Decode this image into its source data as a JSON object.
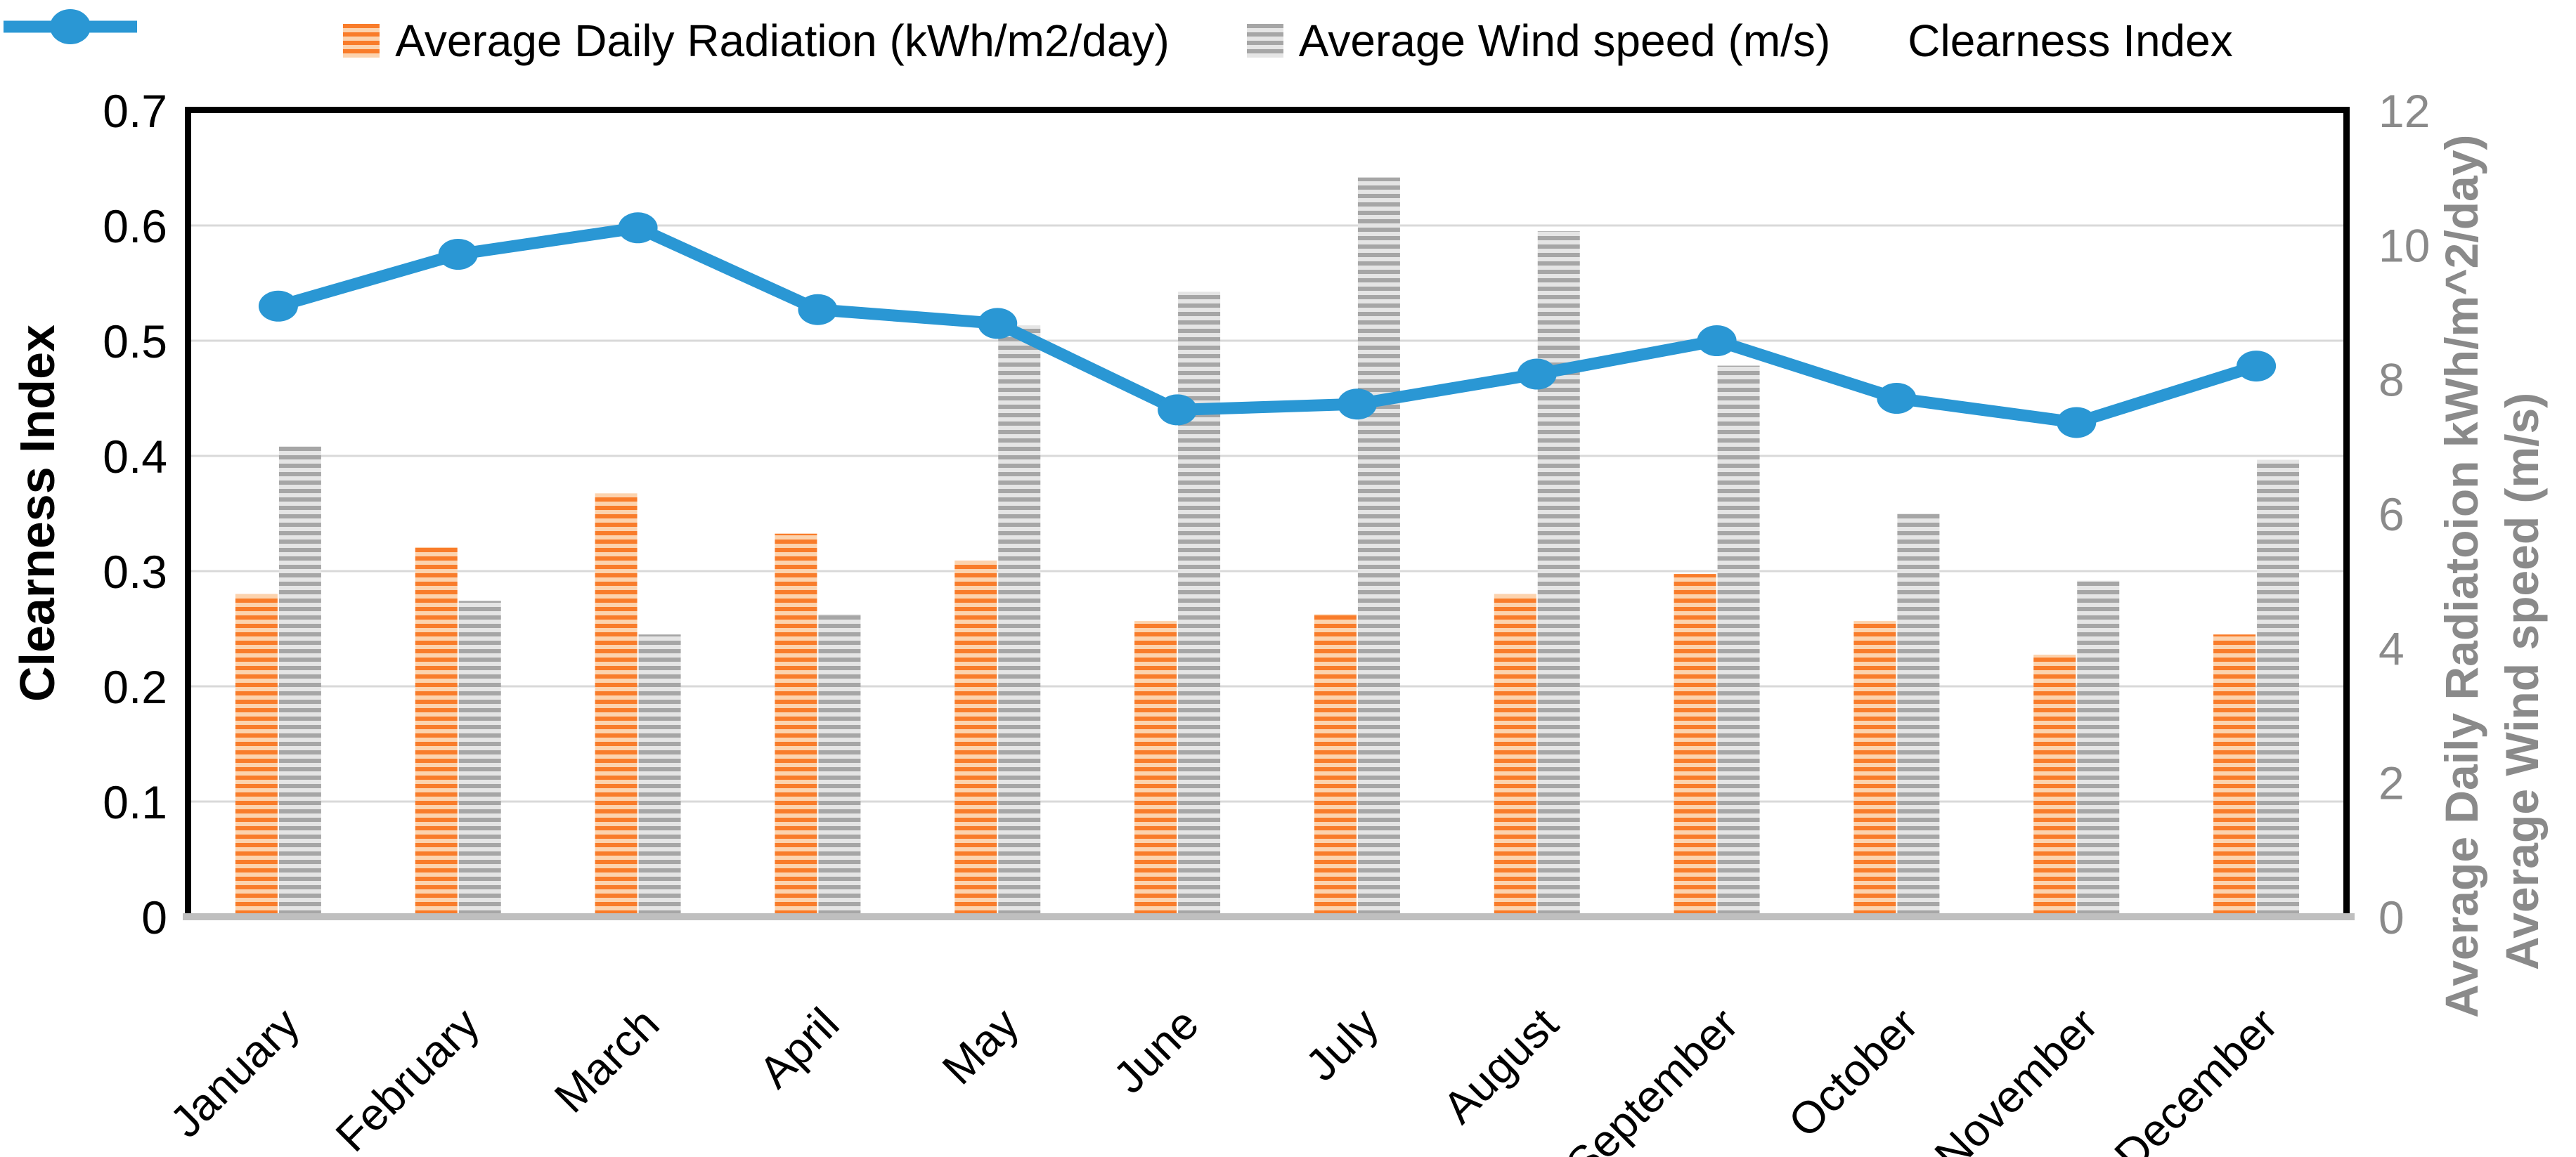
{
  "legend": {
    "radiation_label": "Average Daily Radiation (kWh/m2/day)",
    "wind_label": "Average Wind speed (m/s)",
    "clearness_label": "Clearness Index"
  },
  "axes": {
    "left_title": "Clearness Index",
    "right_title_line1": "Average Daily Radiatoion kWh/m^2/day)",
    "right_title_line2": "Average Wind speed (m/s)",
    "left_ticks": [
      "0.7",
      "0.6",
      "0.5",
      "0.4",
      "0.3",
      "0.2",
      "0.1",
      "0"
    ],
    "right_ticks": [
      "12",
      "10",
      "8",
      "6",
      "4",
      "2",
      "0"
    ]
  },
  "colors": {
    "orange": "#F97C2A",
    "orange_light": "#FCD3AE",
    "gray": "#A6A6A6",
    "gray_light": "#E5E5E5",
    "blue": "#2A97D4",
    "gridline": "#D9D9D9",
    "baseline": "#BFBFBF",
    "frame": "#000000",
    "right_axis_text": "#8A8A8A",
    "left_axis_text": "#000000"
  },
  "chart_data": {
    "type": "combo",
    "categories": [
      "January",
      "February",
      "March",
      "April",
      "May",
      "June",
      "July",
      "August",
      "September",
      "October",
      "November",
      "December"
    ],
    "series": [
      {
        "name": "Average Daily Radiation (kWh/m2/day)",
        "type": "bar",
        "axis": "right",
        "pattern": "horizontal-stripes",
        "color": "#F97C2A",
        "color_light": "#FCD3AE",
        "values": [
          4.8,
          5.5,
          6.3,
          5.7,
          5.3,
          4.4,
          4.5,
          4.8,
          5.1,
          4.4,
          3.9,
          4.2
        ]
      },
      {
        "name": "Average Wind speed (m/s)",
        "type": "bar",
        "axis": "right",
        "pattern": "horizontal-stripes",
        "color": "#A6A6A6",
        "color_light": "#E5E5E5",
        "values": [
          7.0,
          4.7,
          4.2,
          4.5,
          8.8,
          9.3,
          11.0,
          10.2,
          8.2,
          6.0,
          5.0,
          6.8
        ]
      },
      {
        "name": "Clearness Index",
        "type": "line",
        "axis": "left",
        "marker": "circle",
        "color": "#2A97D4",
        "values": [
          0.53,
          0.575,
          0.598,
          0.527,
          0.515,
          0.44,
          0.445,
          0.471,
          0.5,
          0.45,
          0.429,
          0.478
        ]
      }
    ],
    "ylim_left": [
      0,
      0.7
    ],
    "ylim_right": [
      0,
      12
    ],
    "left_tick_step": 0.1,
    "right_tick_step": 2,
    "grid": "horizontal",
    "legend_position": "top",
    "xlabel": "",
    "title": ""
  }
}
